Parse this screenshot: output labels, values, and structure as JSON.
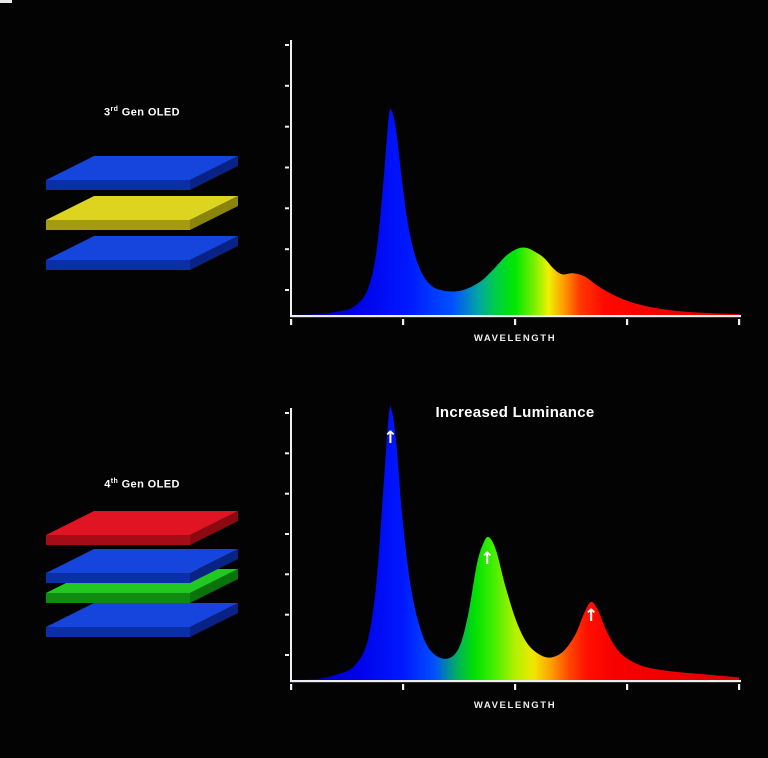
{
  "page": {
    "background": "#030303",
    "axis_color": "#efefef"
  },
  "left_panel": {
    "gen3": {
      "label_prefix": "3",
      "label_sup": "rd",
      "label_rest": " Gen OLED",
      "layers": [
        "blue",
        "yellow",
        "blue"
      ]
    },
    "gen4": {
      "label_prefix": "4",
      "label_sup": "th",
      "label_rest": " Gen OLED",
      "layers": [
        "red",
        "blue",
        "green",
        "blue"
      ]
    },
    "palette": {
      "blue": {
        "top": "#1545dc",
        "front": "#0a2fa6",
        "side": "#082384"
      },
      "yellow": {
        "top": "#dcd41e",
        "front": "#a39c0e",
        "side": "#8a840c"
      },
      "red": {
        "top": "#e01422",
        "front": "#a40d15",
        "side": "#8a0a10"
      },
      "green": {
        "top": "#22c822",
        "front": "#118a11",
        "side": "#0c720c"
      }
    }
  },
  "chart_data": [
    {
      "type": "area",
      "title": "",
      "xlabel": "WAVELENGTH",
      "ylabel": "",
      "x_units": "relative wavelength (blue to red), 0-100",
      "y_units": "relative emission intensity",
      "ylim": [
        0,
        135
      ],
      "x_ticks": 5,
      "y_ticks": 7,
      "grid": false,
      "axis_color": "#efefef",
      "peaks": [
        {
          "color": "blue",
          "x": 22,
          "intensity": 100
        },
        {
          "color": "green",
          "x": 52,
          "intensity": 33
        },
        {
          "color": "red",
          "x": 63,
          "intensity": 20
        }
      ],
      "series": [
        {
          "name": "3rd Gen OLED emission spectrum",
          "points": [
            [
              0,
              0
            ],
            [
              6,
              0.5
            ],
            [
              10,
              1.5
            ],
            [
              14,
              4
            ],
            [
              17,
              12
            ],
            [
              19,
              30
            ],
            [
              20.5,
              62
            ],
            [
              21.8,
              97
            ],
            [
              22.5,
              100
            ],
            [
              23.5,
              90
            ],
            [
              25,
              62
            ],
            [
              26.5,
              40
            ],
            [
              28.5,
              24
            ],
            [
              31,
              15
            ],
            [
              34,
              12
            ],
            [
              38,
              12
            ],
            [
              42,
              16
            ],
            [
              45,
              22
            ],
            [
              48,
              29
            ],
            [
              50.5,
              32.5
            ],
            [
              52.5,
              33
            ],
            [
              54.5,
              31
            ],
            [
              56.5,
              28
            ],
            [
              58.5,
              23
            ],
            [
              60.5,
              20
            ],
            [
              63,
              20.5
            ],
            [
              65.5,
              19
            ],
            [
              68,
              15
            ],
            [
              71,
              11
            ],
            [
              75,
              7
            ],
            [
              80,
              4
            ],
            [
              86,
              2
            ],
            [
              93,
              1
            ],
            [
              100,
              0.5
            ]
          ]
        }
      ],
      "gradient": [
        {
          "o": 0,
          "c": "#000090"
        },
        {
          "o": 0.14,
          "c": "#0000e8"
        },
        {
          "o": 0.26,
          "c": "#0018ff"
        },
        {
          "o": 0.36,
          "c": "#0050ff"
        },
        {
          "o": 0.42,
          "c": "#00a8a0"
        },
        {
          "o": 0.46,
          "c": "#00d040"
        },
        {
          "o": 0.5,
          "c": "#00e800"
        },
        {
          "o": 0.545,
          "c": "#80f000"
        },
        {
          "o": 0.575,
          "c": "#f0f000"
        },
        {
          "o": 0.61,
          "c": "#ff9800"
        },
        {
          "o": 0.645,
          "c": "#ff3800"
        },
        {
          "o": 0.7,
          "c": "#ff0800"
        },
        {
          "o": 1,
          "c": "#d80000"
        }
      ],
      "annotations": []
    },
    {
      "type": "area",
      "title": "Increased Luminance",
      "xlabel": "WAVELENGTH",
      "ylabel": "",
      "x_units": "relative wavelength (blue to red), 0-100",
      "y_units": "relative emission intensity",
      "ylim": [
        0,
        101
      ],
      "x_ticks": 5,
      "y_ticks": 7,
      "grid": false,
      "axis_color": "#efefef",
      "peaks": [
        {
          "color": "blue",
          "x": 22,
          "intensity": 100
        },
        {
          "color": "green",
          "x": 44,
          "intensity": 53
        },
        {
          "color": "red",
          "x": 67,
          "intensity": 29
        }
      ],
      "series": [
        {
          "name": "4th Gen OLED emission spectrum",
          "points": [
            [
              0,
              0
            ],
            [
              6,
              0.5
            ],
            [
              10,
              2
            ],
            [
              14,
              5
            ],
            [
              17,
              14
            ],
            [
              19,
              35
            ],
            [
              20.5,
              68
            ],
            [
              21.8,
              98
            ],
            [
              22.5,
              100
            ],
            [
              23.5,
              88
            ],
            [
              25,
              58
            ],
            [
              27,
              32
            ],
            [
              29.5,
              16
            ],
            [
              32,
              9.5
            ],
            [
              35,
              8
            ],
            [
              37.5,
              12
            ],
            [
              39.5,
              24
            ],
            [
              41.5,
              43
            ],
            [
              43,
              51
            ],
            [
              44.2,
              53
            ],
            [
              45.8,
              48
            ],
            [
              48,
              34
            ],
            [
              50.5,
              21
            ],
            [
              53,
              13
            ],
            [
              56,
              9
            ],
            [
              58.5,
              8.5
            ],
            [
              61,
              11
            ],
            [
              63.5,
              17
            ],
            [
              65.5,
              25
            ],
            [
              67,
              29
            ],
            [
              68.5,
              26
            ],
            [
              70.5,
              18
            ],
            [
              73,
              11
            ],
            [
              76,
              7
            ],
            [
              80,
              4.5
            ],
            [
              86,
              3
            ],
            [
              93,
              2
            ],
            [
              100,
              1
            ]
          ]
        }
      ],
      "gradient": [
        {
          "o": 0,
          "c": "#000090"
        },
        {
          "o": 0.14,
          "c": "#0000e8"
        },
        {
          "o": 0.25,
          "c": "#0018ff"
        },
        {
          "o": 0.32,
          "c": "#0050ff"
        },
        {
          "o": 0.37,
          "c": "#00b060"
        },
        {
          "o": 0.41,
          "c": "#00e000"
        },
        {
          "o": 0.45,
          "c": "#40ee00"
        },
        {
          "o": 0.5,
          "c": "#b0f000"
        },
        {
          "o": 0.54,
          "c": "#f0e800"
        },
        {
          "o": 0.58,
          "c": "#ffa000"
        },
        {
          "o": 0.62,
          "c": "#ff4800"
        },
        {
          "o": 0.66,
          "c": "#ff1000"
        },
        {
          "o": 0.72,
          "c": "#f80000"
        },
        {
          "o": 1,
          "c": "#e00000"
        }
      ],
      "annotations": [
        {
          "x": 22.2,
          "y": 88,
          "glyph": "↑"
        },
        {
          "x": 43.8,
          "y": 43,
          "glyph": "↑"
        },
        {
          "x": 67,
          "y": 22,
          "glyph": "↑"
        }
      ]
    }
  ]
}
